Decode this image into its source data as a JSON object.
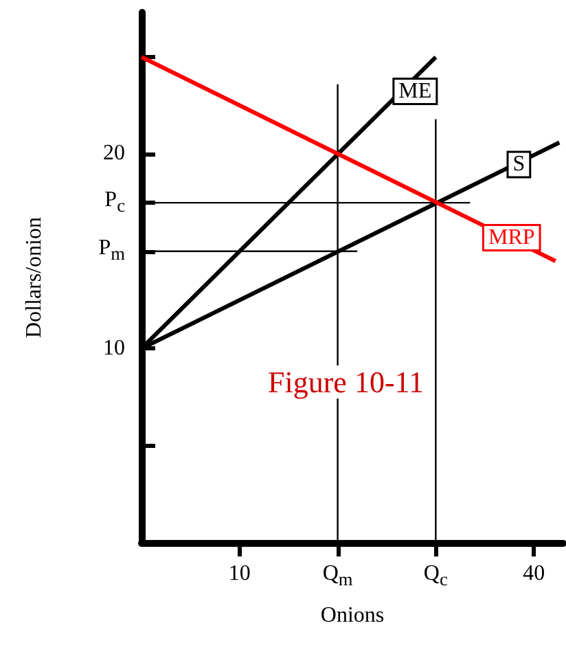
{
  "chart_data": {
    "type": "line",
    "xlabel": "Onions",
    "ylabel": "Dollars/onion",
    "marker": "none",
    "grid": false,
    "annotations": [
      "Figure 10-11"
    ],
    "xlim": [
      0,
      43
    ],
    "ylim": [
      0,
      27.3
    ],
    "xticks": [
      10,
      {
        "value": 20,
        "label": "Q$_{m}$"
      },
      {
        "value": 30,
        "label": "Q$_{c}$"
      },
      40
    ],
    "yticks": [
      {
        "value": 5,
        "label": null
      },
      10,
      {
        "value": 15,
        "label": "P$_{m}$"
      },
      {
        "value": 17.5,
        "label": "P$_{c}$"
      },
      20,
      {
        "value": 25,
        "label": null
      }
    ],
    "series": [
      {
        "name": "ME",
        "color": "#000000",
        "x": [
          0,
          30
        ],
        "values": [
          10,
          25
        ]
      },
      {
        "name": "S",
        "color": "#000000",
        "x": [
          0,
          42.6
        ],
        "values": [
          10,
          20.6
        ]
      },
      {
        "name": "MRP",
        "color": "#ff0000",
        "x": [
          0,
          42.2
        ],
        "values": [
          25,
          14.5
        ]
      },
      {
        "color": "#000000",
        "x": [
          0,
          33.5
        ],
        "values": [
          17.5,
          17.5
        ]
      },
      {
        "color": "#000000",
        "x": [
          0,
          22
        ],
        "values": [
          15,
          15
        ]
      },
      {
        "color": "#000000",
        "x": [
          20,
          20
        ],
        "values": [
          0,
          23.6
        ]
      },
      {
        "color": "#000000",
        "x": [
          30,
          30
        ],
        "values": [
          0,
          21.8
        ]
      }
    ]
  }
}
